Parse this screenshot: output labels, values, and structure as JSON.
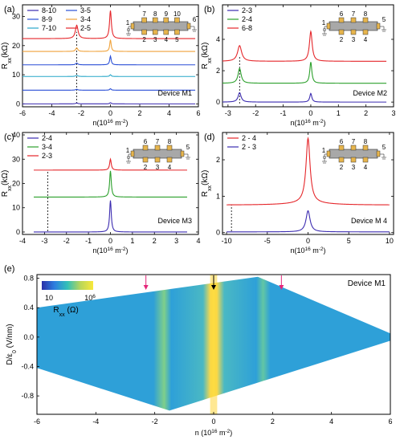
{
  "figure": {
    "panels": [
      {
        "label": "(a)",
        "ylabel_main": "R",
        "ylabel_sub": "xx",
        "ylabel_unit": "(kΩ)",
        "xlabel_main": "n(10",
        "xlabel_sup": "16",
        "xlabel_unit": " m",
        "xlabel_sup2": "-2",
        "xlabel_end": ")",
        "device": "Device M1"
      },
      {
        "label": "(b)",
        "ylabel_main": "R",
        "ylabel_sub": "xx",
        "ylabel_unit": "(kΩ)",
        "xlabel_main": "n(10",
        "xlabel_sup": "16",
        "xlabel_unit": " m",
        "xlabel_sup2": "-2",
        "xlabel_end": ")",
        "device": "Device M2"
      },
      {
        "label": "(c)",
        "ylabel_main": "R",
        "ylabel_sub": "xx",
        "ylabel_unit": "(kΩ)",
        "xlabel_main": "n(10",
        "xlabel_sup": "16",
        "xlabel_unit": " m",
        "xlabel_sup2": "-2",
        "xlabel_end": ")",
        "device": "Device M3"
      },
      {
        "label": "(d)",
        "ylabel_main": "R",
        "ylabel_sub": "xx",
        "ylabel_unit": "(kΩ)",
        "xlabel_main": "n(10",
        "xlabel_sup": "16",
        "xlabel_unit": " m",
        "xlabel_sup2": "-2",
        "xlabel_end": ")",
        "device": "Device M 4"
      },
      {
        "label": "(e)",
        "ylabel_main": "D/ε",
        "ylabel_sub": "0",
        "ylabel_unit": " (V/nm)",
        "xlabel_main": "n (10",
        "xlabel_sup": "16",
        "xlabel_unit": " m",
        "xlabel_sup2": "-2",
        "xlabel_end": ")",
        "device": "Device M1"
      }
    ],
    "colorbar": {
      "min_label": "10",
      "max_label_base": "10",
      "max_label_exp": "6",
      "title_main": "R",
      "title_sub": "xx",
      "title_unit": " (Ω)"
    },
    "insets": {
      "a": {
        "top": [
          "7",
          "8",
          "9",
          "10"
        ],
        "bottom": [
          "2",
          "3",
          "4",
          "5"
        ],
        "left": "1",
        "right": "6"
      },
      "b": {
        "top": [
          "6",
          "7",
          "8"
        ],
        "bottom": [
          "2",
          "3",
          "4"
        ],
        "left": "1",
        "right": "5"
      },
      "c": {
        "top": [
          "6",
          "7",
          "8"
        ],
        "bottom": [
          "2",
          "3",
          "4"
        ],
        "left": "1",
        "right": "5"
      },
      "d": {
        "top": [
          "6",
          "7",
          "8"
        ],
        "bottom": [
          "2",
          "3",
          "4"
        ],
        "left": "1",
        "right": "5"
      }
    },
    "colors": {
      "purple": "#3b2bb0",
      "blue": "#2a4fd6",
      "cyan": "#27a7c9",
      "orange": "#f0a23a",
      "green": "#2ca02c",
      "red": "#e5262a",
      "gold": "#e7b54c",
      "device_gray": "#a8a8a8",
      "axis": "#000000"
    }
  },
  "chart_data": [
    {
      "type": "line",
      "panel": "(a)",
      "xlim": [
        -6,
        6
      ],
      "ylim": [
        -1,
        34
      ],
      "xticks": [
        "-6",
        "-4",
        "-2",
        "0",
        "2",
        "4",
        "6"
      ],
      "yticks": [
        "0",
        "10",
        "20",
        "30"
      ],
      "series": [
        {
          "name": "8-10",
          "offset": 0,
          "peak_cnp": 0.4,
          "peak_sat": 0.3,
          "width": 0.04
        },
        {
          "name": "8-9",
          "offset": 4.7,
          "peak_cnp": 0.5,
          "peak_sat": 0.3,
          "width": 0.04
        },
        {
          "name": "7-10",
          "offset": 9.4,
          "peak_cnp": 0.6,
          "peak_sat": 0.4,
          "width": 0.04
        },
        {
          "name": "3-5",
          "offset": 13.4,
          "peak_cnp": 3.0,
          "peak_sat": 0.6,
          "width": 0.04
        },
        {
          "name": "3-4",
          "offset": 18.0,
          "peak_cnp": 4.0,
          "peak_sat": 1.2,
          "width": 0.04
        },
        {
          "name": "2-5",
          "offset": 22.4,
          "peak_cnp": 9.6,
          "peak_sat": 4.6,
          "width": 0.05
        }
      ],
      "saturation_x": -2.3
    },
    {
      "type": "line",
      "panel": "(b)",
      "xlim": [
        -3.2,
        3
      ],
      "ylim": [
        -0.3,
        6.2
      ],
      "xticks": [
        "-3",
        "-2",
        "-1",
        "0",
        "1",
        "2",
        "3"
      ],
      "yticks": [
        "0",
        "2",
        "4"
      ],
      "series": [
        {
          "name": "2-3",
          "offset": 0.0,
          "peak_cnp": 0.55,
          "peak_sat": 0.6,
          "width": 0.03
        },
        {
          "name": "2-4",
          "offset": 1.2,
          "peak_cnp": 1.35,
          "peak_sat": 0.95,
          "width": 0.03
        },
        {
          "name": "6-8",
          "offset": 2.6,
          "peak_cnp": 1.9,
          "peak_sat": 1.0,
          "width": 0.04
        }
      ],
      "saturation_x": -2.58
    },
    {
      "type": "line",
      "panel": "(c)",
      "xlim": [
        -4,
        4
      ],
      "ylim": [
        -1,
        41
      ],
      "xticks": [
        "-4",
        "-3",
        "-2",
        "-1",
        "0",
        "1",
        "2",
        "3",
        "4"
      ],
      "yticks": [
        "0",
        "10",
        "20",
        "30",
        "40"
      ],
      "series": [
        {
          "name": "2-4",
          "offset": 0,
          "peak_cnp": 13.0,
          "peak_sat": 0,
          "width": 0.03
        },
        {
          "name": "3-4",
          "offset": 14.4,
          "peak_cnp": 10.8,
          "peak_sat": 0,
          "width": 0.03
        },
        {
          "name": "2-3",
          "offset": 25.5,
          "peak_cnp": 4.5,
          "peak_sat": 0,
          "width": 0.03
        }
      ],
      "saturation_x": -2.85
    },
    {
      "type": "line",
      "panel": "(d)",
      "xlim": [
        -10.5,
        10.5
      ],
      "ylim": [
        -0.05,
        2.75
      ],
      "xticks": [
        "-10",
        "-5",
        "0",
        "5",
        "10"
      ],
      "yticks": [
        "0",
        "1",
        "2"
      ],
      "series": [
        {
          "name": "2 - 4",
          "offset": 0.76,
          "peak_cnp": 1.75,
          "peak_sat": 0,
          "width": 0.3
        },
        {
          "name": "2 - 3",
          "offset": 0.02,
          "peak_cnp": 0.58,
          "peak_sat": 0,
          "width": 0.3
        }
      ],
      "saturation_x": -9.4
    },
    {
      "type": "heatmap",
      "panel": "(e)",
      "xlim": [
        -6,
        6
      ],
      "ylim": [
        -1.05,
        0.85
      ],
      "xticks": [
        "-6",
        "-4",
        "-2",
        "0",
        "2",
        "4",
        "6"
      ],
      "yticks": [
        "0.8",
        "0.4",
        "0.0",
        "-0.4",
        "-0.8"
      ],
      "color_scale": "log",
      "zlim": [
        10,
        1000000
      ],
      "region_polygon": [
        [
          -6,
          0.4
        ],
        [
          1.5,
          0.82
        ],
        [
          6,
          0.05
        ],
        [
          6,
          -0.05
        ],
        [
          -1.5,
          -1.0
        ],
        [
          -6,
          -0.42
        ]
      ],
      "arrows": [
        {
          "x": -2.3,
          "color": "#e5267a"
        },
        {
          "x": 0,
          "color": "#000000"
        },
        {
          "x": 2.3,
          "color": "#e5267a"
        }
      ]
    }
  ]
}
